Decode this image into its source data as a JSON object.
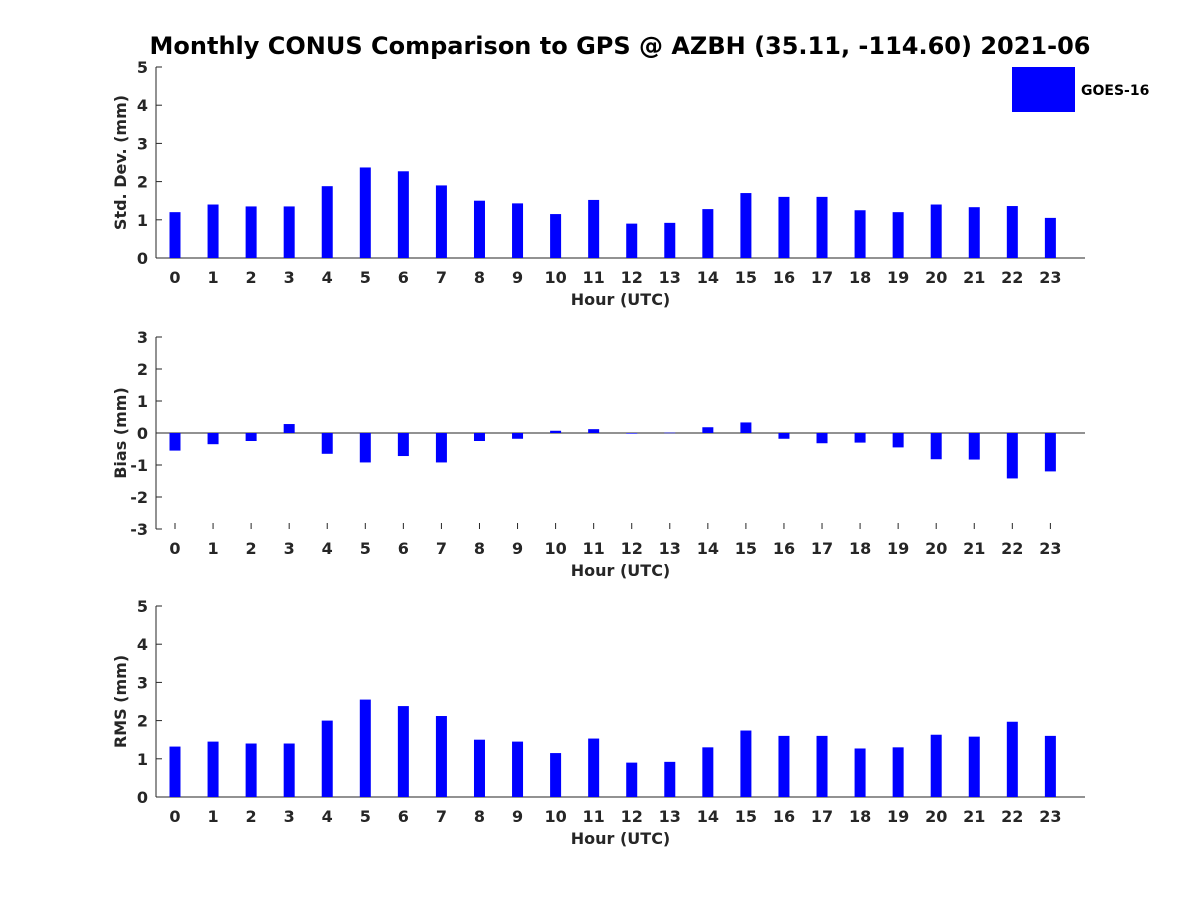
{
  "chart_data": {
    "type": "bar",
    "title": "Monthly CONUS Comparison to GPS @ AZBH (35.11, -114.60) 2021-06",
    "legend": {
      "label": "GOES-16",
      "color": "#0000ff",
      "placement": "top-right"
    },
    "categories": [
      "0",
      "1",
      "2",
      "3",
      "4",
      "5",
      "6",
      "7",
      "8",
      "9",
      "10",
      "11",
      "12",
      "13",
      "14",
      "15",
      "16",
      "17",
      "18",
      "19",
      "20",
      "21",
      "22",
      "23"
    ],
    "panels": [
      {
        "id": "stddev",
        "ylabel": "Std. Dev. (mm)",
        "xlabel": "Hour (UTC)",
        "ylim": [
          0,
          5
        ],
        "yticks": [
          "0",
          "1",
          "2",
          "3",
          "4",
          "5"
        ],
        "values": [
          1.2,
          1.4,
          1.35,
          1.35,
          1.88,
          2.37,
          2.27,
          1.9,
          1.5,
          1.43,
          1.15,
          1.52,
          0.9,
          0.92,
          1.28,
          1.7,
          1.6,
          1.6,
          1.25,
          1.2,
          1.4,
          1.33,
          1.36,
          1.05
        ]
      },
      {
        "id": "bias",
        "ylabel": "Bias (mm)",
        "xlabel": "Hour (UTC)",
        "ylim": [
          -3,
          3
        ],
        "yticks": [
          "-3",
          "-2",
          "-1",
          "0",
          "1",
          "2",
          "3"
        ],
        "values": [
          -0.55,
          -0.35,
          -0.25,
          0.28,
          -0.65,
          -0.92,
          -0.72,
          -0.92,
          -0.25,
          -0.18,
          0.07,
          0.12,
          -0.02,
          0.01,
          0.18,
          0.33,
          -0.18,
          -0.32,
          -0.3,
          -0.45,
          -0.82,
          -0.83,
          -1.42,
          -1.2
        ]
      },
      {
        "id": "rms",
        "ylabel": "RMS (mm)",
        "xlabel": "Hour (UTC)",
        "ylim": [
          0,
          5
        ],
        "yticks": [
          "0",
          "1",
          "2",
          "3",
          "4",
          "5"
        ],
        "values": [
          1.32,
          1.45,
          1.4,
          1.4,
          2.0,
          2.55,
          2.38,
          2.12,
          1.5,
          1.45,
          1.15,
          1.53,
          0.9,
          0.92,
          1.3,
          1.74,
          1.6,
          1.6,
          1.27,
          1.3,
          1.63,
          1.58,
          1.97,
          1.6
        ]
      }
    ]
  }
}
